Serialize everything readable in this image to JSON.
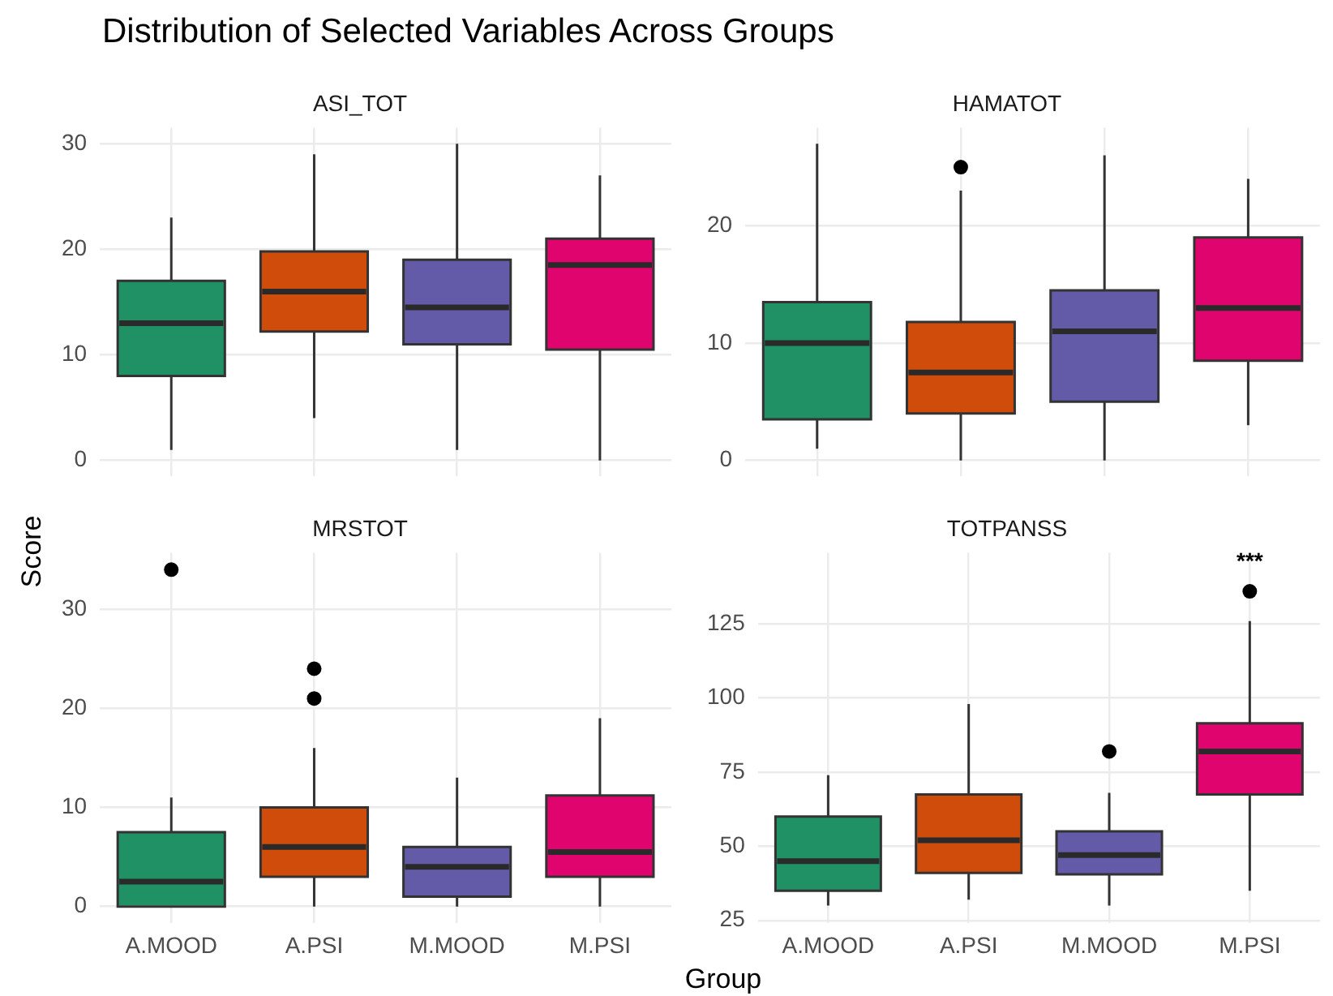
{
  "chart_data": [
    {
      "type": "box",
      "title": "Distribution of Selected Variables Across Groups",
      "subtitle": "ASI_TOT",
      "ylabel": "Score",
      "categories": [
        null,
        null,
        null,
        null
      ],
      "colors": [
        "#1f9165",
        "#d04c0a",
        "#635ba8",
        "#e0046f"
      ],
      "boxes": [
        {
          "low": 1,
          "q1": 8,
          "median": 13,
          "q3": 17,
          "high": 23
        },
        {
          "low": 4,
          "q1": 12.2,
          "median": 16,
          "q3": 19.8,
          "high": 29
        },
        {
          "low": 1,
          "q1": 11,
          "median": 14.5,
          "q3": 19,
          "high": 30
        },
        {
          "low": 0,
          "q1": 10.5,
          "median": 18.5,
          "q3": 21,
          "high": 27
        }
      ],
      "ylim": [
        -1.5,
        31.5
      ],
      "yticks": [
        0,
        10,
        20,
        30
      ],
      "grid": true,
      "tick_labels": "y"
    },
    {
      "type": "box",
      "subtitle": "HAMATOT",
      "categories": [
        null,
        null,
        null,
        null
      ],
      "colors": [
        "#1f9165",
        "#d04c0a",
        "#635ba8",
        "#e0046f"
      ],
      "boxes": [
        {
          "low": 1,
          "q1": 3.5,
          "median": 10,
          "q3": 13.5,
          "high": 27
        },
        {
          "low": 0,
          "q1": 4,
          "median": 7.5,
          "q3": 11.8,
          "high": 23,
          "outliers": [
            25
          ]
        },
        {
          "low": 0,
          "q1": 5,
          "median": 11,
          "q3": 14.5,
          "high": 26
        },
        {
          "low": 3,
          "q1": 8.5,
          "median": 13,
          "q3": 19,
          "high": 24
        }
      ],
      "ylim": [
        -1.35,
        28.35
      ],
      "yticks": [
        0,
        10,
        20
      ],
      "grid": true,
      "tick_labels": "y"
    },
    {
      "type": "box",
      "subtitle": "MRSTOT",
      "xlabel": "Group",
      "categories": [
        "A.MOOD",
        "A.PSI",
        "M.MOOD",
        "M.PSI"
      ],
      "colors": [
        "#1f9165",
        "#d04c0a",
        "#635ba8",
        "#e0046f"
      ],
      "boxes": [
        {
          "low": 0,
          "q1": 0,
          "median": 2.5,
          "q3": 7.5,
          "high": 11,
          "outliers": [
            34
          ]
        },
        {
          "low": 0,
          "q1": 3,
          "median": 6,
          "q3": 10,
          "high": 16,
          "outliers": [
            21,
            24
          ]
        },
        {
          "low": 0,
          "q1": 1,
          "median": 4,
          "q3": 6,
          "high": 13
        },
        {
          "low": 0,
          "q1": 3,
          "median": 5.5,
          "q3": 11.2,
          "high": 19
        }
      ],
      "ylim": [
        -1.7,
        35.7
      ],
      "yticks": [
        0,
        10,
        20,
        30
      ],
      "grid": true
    },
    {
      "type": "box",
      "subtitle": "TOTPANSS",
      "categories": [
        "A.MOOD",
        "A.PSI",
        "M.MOOD",
        "M.PSI"
      ],
      "colors": [
        "#1f9165",
        "#d04c0a",
        "#635ba8",
        "#e0046f"
      ],
      "boxes": [
        {
          "low": 30,
          "q1": 35,
          "median": 45,
          "q3": 60,
          "high": 74
        },
        {
          "low": 32,
          "q1": 41,
          "median": 52,
          "q3": 67.5,
          "high": 98
        },
        {
          "low": 30,
          "q1": 40.5,
          "median": 47,
          "q3": 55,
          "high": 68,
          "outliers": [
            82
          ]
        },
        {
          "low": 35,
          "q1": 67.5,
          "median": 82,
          "q3": 91.5,
          "high": 126,
          "outliers": [
            136
          ]
        }
      ],
      "ylim": [
        24,
        149
      ],
      "yticks": [
        25,
        50,
        75,
        100,
        125
      ],
      "grid": true,
      "annotations": [
        "***"
      ]
    }
  ]
}
